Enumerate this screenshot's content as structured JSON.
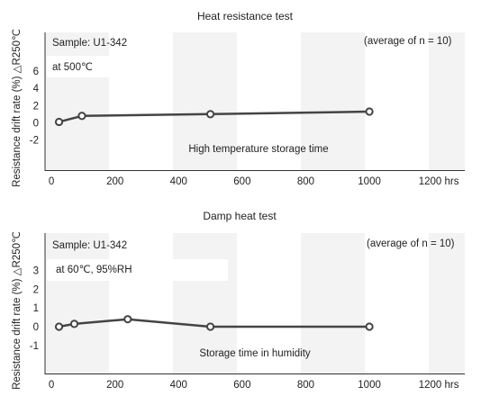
{
  "chart_data": [
    {
      "type": "line",
      "title": "Heat resistance test",
      "ylabel": "Resistance drift rate (%) △R250℃",
      "sample_label": "Sample: U1-342",
      "average_note": "(average of n = 10)",
      "condition_label": "at 500℃",
      "series_annotation": "High temperature storage time",
      "xlim": [
        -20,
        1300
      ],
      "ylim": [
        -5.5,
        10.5
      ],
      "x_ticks": [
        "0",
        "200",
        "400",
        "600",
        "800",
        "1000",
        "1200 hrs"
      ],
      "y_ticks": [
        "6",
        "4",
        "2",
        "0",
        "-2"
      ],
      "series": [
        {
          "x": [
            24,
            96,
            500,
            1000
          ],
          "y": [
            0.1,
            0.8,
            1.0,
            1.3
          ],
          "color": "#444444"
        }
      ]
    },
    {
      "type": "line",
      "title": "Damp heat test",
      "ylabel": "Resistance drift rate (%) △R250℃",
      "sample_label": "Sample: U1-342",
      "average_note": "(average of n = 10)",
      "condition_label": "at 60℃, 95%RH",
      "series_annotation": "Storage time in humidity",
      "xlim": [
        -20,
        1300
      ],
      "ylim": [
        -2.5,
        5.0
      ],
      "x_ticks": [
        "0",
        "200",
        "400",
        "600",
        "800",
        "1000",
        "1200 hrs"
      ],
      "y_ticks": [
        "3",
        "2",
        "1",
        "0",
        "-1"
      ],
      "series": [
        {
          "x": [
            24,
            72,
            240,
            500,
            1000
          ],
          "y": [
            0.0,
            0.15,
            0.4,
            0.0,
            0.0
          ],
          "color": "#444444"
        }
      ]
    }
  ]
}
